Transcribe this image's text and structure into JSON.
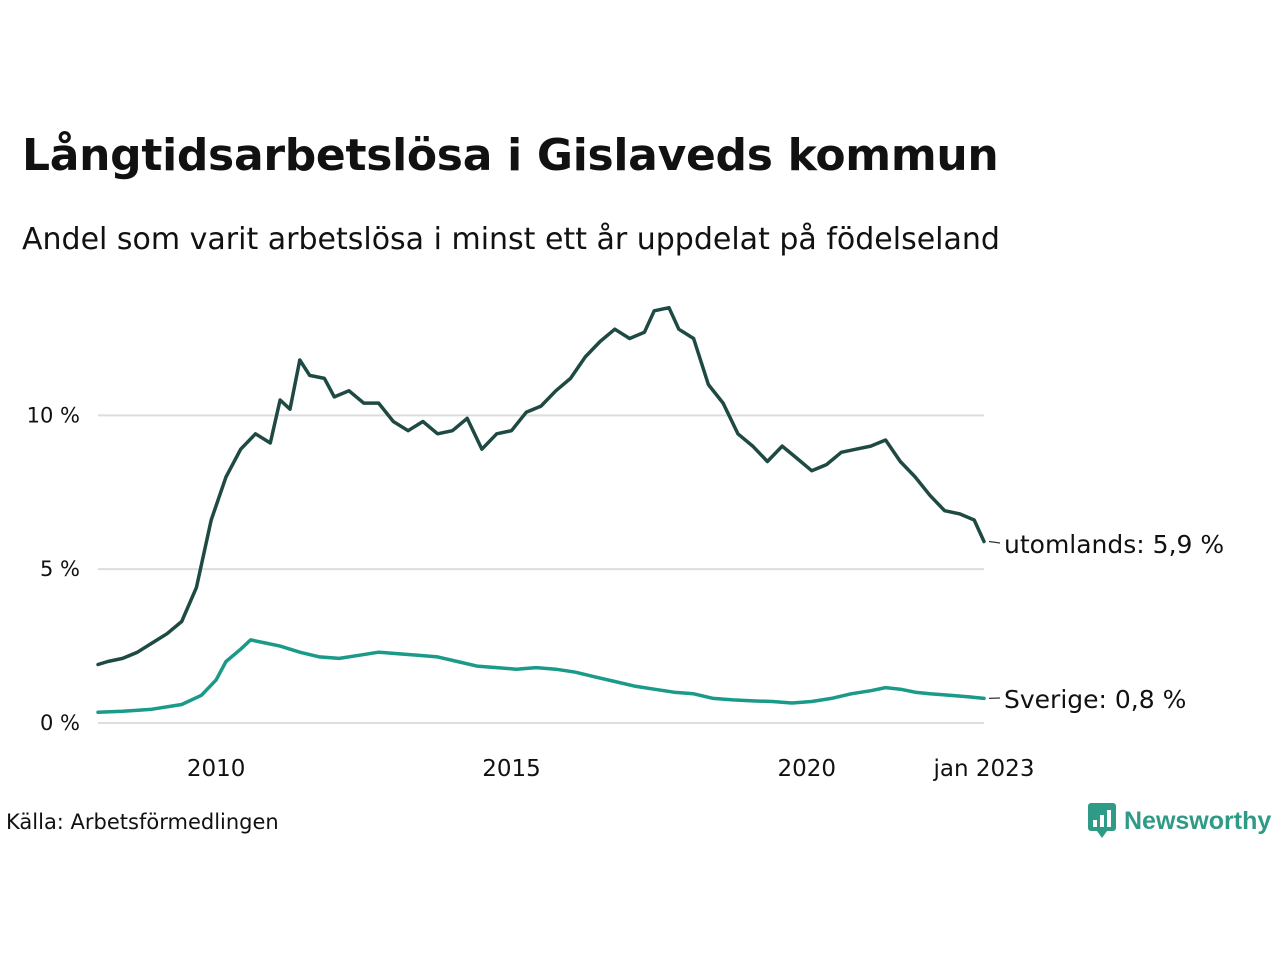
{
  "title": "Långtidsarbetslösa i Gislaveds kommun",
  "subtitle": "Andel som varit arbetslösa i minst ett år uppdelat på födelseland",
  "source": "Källa: Arbetsförmedlingen",
  "brand": "Newsworthy",
  "colors": {
    "utomlands": "#1f4a43",
    "sverige": "#1a9a88",
    "grid": "#dddddd",
    "brand": "#2f9a86"
  },
  "chart_data": {
    "type": "line",
    "title": "Långtidsarbetslösa i Gislaveds kommun",
    "subtitle": "Andel som varit arbetslösa i minst ett år uppdelat på födelseland",
    "xlabel": "",
    "ylabel": "",
    "x_range": [
      "2008-01",
      "2023-01"
    ],
    "x_ticks": [
      {
        "date": "2010-01",
        "label": "2010"
      },
      {
        "date": "2015-01",
        "label": "2015"
      },
      {
        "date": "2020-01",
        "label": "2020"
      },
      {
        "date": "2023-01",
        "label": "jan 2023"
      }
    ],
    "y_ticks": [
      {
        "value": 0,
        "label": "0 %"
      },
      {
        "value": 5,
        "label": "5 %"
      },
      {
        "value": 10,
        "label": "10 %"
      }
    ],
    "ylim": [
      0,
      13.8
    ],
    "grid": "horizontal",
    "legend": "end-labels",
    "series": [
      {
        "key": "utomlands",
        "name": "utomlands",
        "end_label": "utomlands: 5,9 %",
        "points": [
          [
            "2008-01",
            1.9
          ],
          [
            "2008-03",
            2.0
          ],
          [
            "2008-06",
            2.1
          ],
          [
            "2008-09",
            2.3
          ],
          [
            "2008-12",
            2.6
          ],
          [
            "2009-03",
            2.9
          ],
          [
            "2009-06",
            3.3
          ],
          [
            "2009-09",
            4.4
          ],
          [
            "2009-12",
            6.6
          ],
          [
            "2010-03",
            8.0
          ],
          [
            "2010-06",
            8.9
          ],
          [
            "2010-09",
            9.4
          ],
          [
            "2010-12",
            9.1
          ],
          [
            "2011-02",
            10.5
          ],
          [
            "2011-04",
            10.2
          ],
          [
            "2011-06",
            11.8
          ],
          [
            "2011-08",
            11.3
          ],
          [
            "2011-11",
            11.2
          ],
          [
            "2012-01",
            10.6
          ],
          [
            "2012-04",
            10.8
          ],
          [
            "2012-07",
            10.4
          ],
          [
            "2012-10",
            10.4
          ],
          [
            "2013-01",
            9.8
          ],
          [
            "2013-04",
            9.5
          ],
          [
            "2013-07",
            9.8
          ],
          [
            "2013-10",
            9.4
          ],
          [
            "2014-01",
            9.5
          ],
          [
            "2014-04",
            9.9
          ],
          [
            "2014-07",
            8.9
          ],
          [
            "2014-10",
            9.4
          ],
          [
            "2015-01",
            9.5
          ],
          [
            "2015-04",
            10.1
          ],
          [
            "2015-07",
            10.3
          ],
          [
            "2015-10",
            10.8
          ],
          [
            "2016-01",
            11.2
          ],
          [
            "2016-04",
            11.9
          ],
          [
            "2016-07",
            12.4
          ],
          [
            "2016-10",
            12.8
          ],
          [
            "2017-01",
            12.5
          ],
          [
            "2017-04",
            12.7
          ],
          [
            "2017-06",
            13.4
          ],
          [
            "2017-09",
            13.5
          ],
          [
            "2017-11",
            12.8
          ],
          [
            "2018-02",
            12.5
          ],
          [
            "2018-05",
            11.0
          ],
          [
            "2018-08",
            10.4
          ],
          [
            "2018-11",
            9.4
          ],
          [
            "2019-02",
            9.0
          ],
          [
            "2019-05",
            8.5
          ],
          [
            "2019-08",
            9.0
          ],
          [
            "2019-11",
            8.6
          ],
          [
            "2020-02",
            8.2
          ],
          [
            "2020-05",
            8.4
          ],
          [
            "2020-08",
            8.8
          ],
          [
            "2020-11",
            8.9
          ],
          [
            "2021-02",
            9.0
          ],
          [
            "2021-05",
            9.2
          ],
          [
            "2021-08",
            8.5
          ],
          [
            "2021-11",
            8.0
          ],
          [
            "2022-02",
            7.4
          ],
          [
            "2022-05",
            6.9
          ],
          [
            "2022-08",
            6.8
          ],
          [
            "2022-11",
            6.6
          ],
          [
            "2023-01",
            5.9
          ]
        ]
      },
      {
        "key": "sverige",
        "name": "Sverige",
        "end_label": "Sverige: 0,8 %",
        "points": [
          [
            "2008-01",
            0.35
          ],
          [
            "2008-06",
            0.38
          ],
          [
            "2008-12",
            0.45
          ],
          [
            "2009-06",
            0.6
          ],
          [
            "2009-10",
            0.9
          ],
          [
            "2010-01",
            1.4
          ],
          [
            "2010-03",
            2.0
          ],
          [
            "2010-06",
            2.4
          ],
          [
            "2010-08",
            2.7
          ],
          [
            "2010-11",
            2.6
          ],
          [
            "2011-02",
            2.5
          ],
          [
            "2011-06",
            2.3
          ],
          [
            "2011-10",
            2.15
          ],
          [
            "2012-02",
            2.1
          ],
          [
            "2012-06",
            2.2
          ],
          [
            "2012-10",
            2.3
          ],
          [
            "2013-02",
            2.25
          ],
          [
            "2013-06",
            2.2
          ],
          [
            "2013-10",
            2.15
          ],
          [
            "2014-02",
            2.0
          ],
          [
            "2014-06",
            1.85
          ],
          [
            "2014-10",
            1.8
          ],
          [
            "2015-02",
            1.75
          ],
          [
            "2015-06",
            1.8
          ],
          [
            "2015-10",
            1.75
          ],
          [
            "2016-02",
            1.65
          ],
          [
            "2016-06",
            1.5
          ],
          [
            "2016-10",
            1.35
          ],
          [
            "2017-02",
            1.2
          ],
          [
            "2017-06",
            1.1
          ],
          [
            "2017-10",
            1.0
          ],
          [
            "2018-02",
            0.95
          ],
          [
            "2018-06",
            0.8
          ],
          [
            "2018-10",
            0.75
          ],
          [
            "2019-02",
            0.72
          ],
          [
            "2019-06",
            0.7
          ],
          [
            "2019-10",
            0.65
          ],
          [
            "2020-02",
            0.7
          ],
          [
            "2020-06",
            0.8
          ],
          [
            "2020-10",
            0.95
          ],
          [
            "2021-02",
            1.05
          ],
          [
            "2021-05",
            1.15
          ],
          [
            "2021-08",
            1.1
          ],
          [
            "2021-11",
            1.0
          ],
          [
            "2022-02",
            0.95
          ],
          [
            "2022-06",
            0.9
          ],
          [
            "2022-10",
            0.85
          ],
          [
            "2023-01",
            0.8
          ]
        ]
      }
    ]
  }
}
